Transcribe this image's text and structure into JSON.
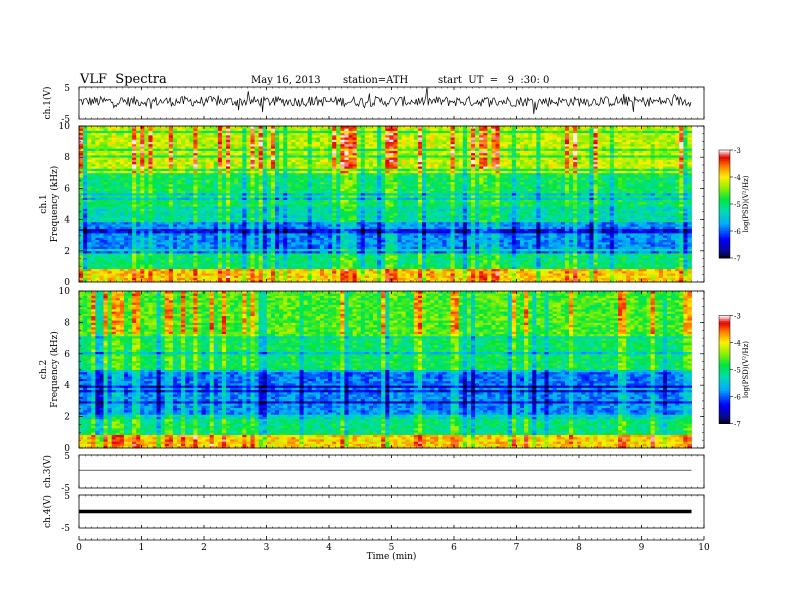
{
  "header": {
    "title": "VLF  Spectra",
    "date": "May 16, 2013",
    "station": "station=ATH",
    "start": "start  UT  =   9  :30: 0"
  },
  "chart_data": [
    {
      "type": "line",
      "ylabel": "ch.1(V)",
      "ylim": [
        -5,
        5
      ],
      "y_ticks": [
        "5",
        "-5"
      ],
      "description_level": 0.5,
      "style": "noisy"
    },
    {
      "type": "heatmap",
      "ylabel_channel": "ch.1",
      "ylabel": "Frequency  (kHz)",
      "ylim": [
        0,
        10
      ],
      "y_ticks": [
        "0",
        "2",
        "4",
        "6",
        "8",
        "10"
      ],
      "colorbar": {
        "label": "log(PSD)(V²/Hz)",
        "ticks": [
          "-3",
          "-4",
          "-5",
          "-6",
          "-7"
        ],
        "range": [
          -7,
          -3
        ]
      }
    },
    {
      "type": "heatmap",
      "ylabel_channel": "ch.2",
      "ylabel": "Frequency  (kHz)",
      "ylim": [
        0,
        10
      ],
      "y_ticks": [
        "0",
        "2",
        "4",
        "6",
        "8",
        "10"
      ],
      "colorbar": {
        "label": "log(PSD)(V²/Hz)",
        "ticks": [
          "-3",
          "-4",
          "-5",
          "-6",
          "-7"
        ],
        "range": [
          -7,
          -3
        ]
      }
    },
    {
      "type": "line",
      "ylabel": "ch.3(V)",
      "ylim": [
        -5,
        5
      ],
      "y_ticks": [
        "5",
        "-5"
      ],
      "level": 0.4,
      "style": "thin"
    },
    {
      "type": "line",
      "ylabel": "ch.4(V)",
      "ylim": [
        -5,
        5
      ],
      "y_ticks": [
        "5",
        "-5"
      ],
      "level": 0,
      "style": "thick"
    }
  ],
  "x_axis": {
    "label": "Time  (min)",
    "xlim": [
      0,
      10
    ],
    "ticks": [
      "0",
      "1",
      "2",
      "3",
      "4",
      "5",
      "6",
      "7",
      "8",
      "9",
      "10"
    ],
    "data_end": 9.8
  }
}
